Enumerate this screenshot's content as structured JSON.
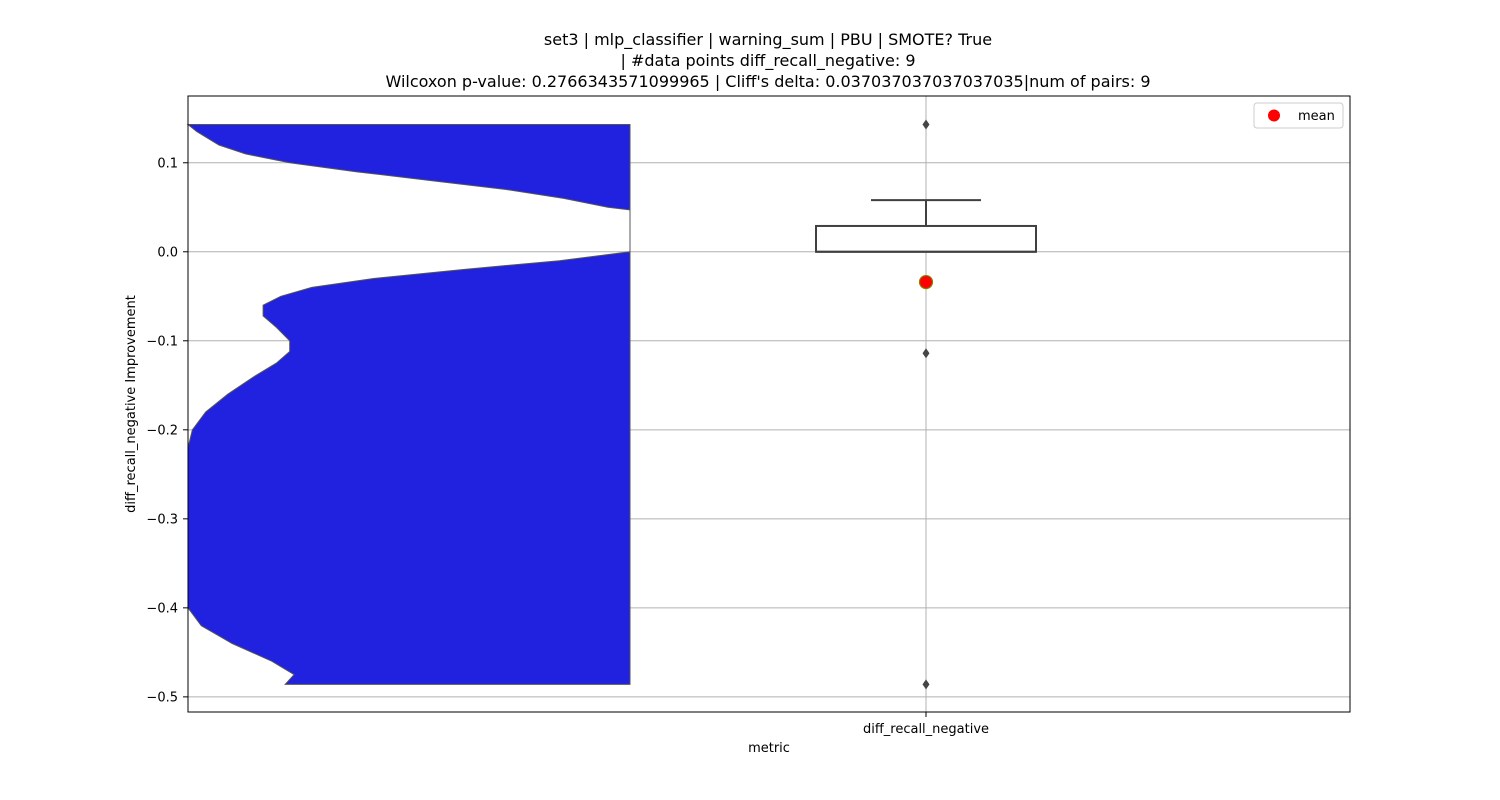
{
  "chart_data": {
    "type": "violin",
    "title_lines": [
      "set3 | mlp_classifier | warning_sum | PBU | SMOTE? True",
      "| #data points diff_recall_negative: 9",
      "Wilcoxon p-value: 0.2766343571099965 | Cliff's delta: 0.037037037037037035|num of pairs: 9"
    ],
    "xlabel": "metric",
    "ylabel": "diff_recall_negative Improvement",
    "categories": [
      "diff_recall_negative"
    ],
    "ylim": [
      -0.517,
      0.175
    ],
    "yticks": [
      0.1,
      0.0,
      -0.1,
      -0.2,
      -0.3,
      -0.4,
      -0.5
    ],
    "ytick_labels": [
      "0.1",
      "0.0",
      "−0.1",
      "−0.2",
      "−0.3",
      "−0.4",
      "−0.5"
    ],
    "grid": true,
    "legend": {
      "position": "top-right",
      "entries": [
        {
          "label": "mean",
          "color": "#ff0000"
        }
      ]
    },
    "violin": {
      "color": "#2121e0",
      "min": -0.486,
      "max": 0.143,
      "density_profile": [
        {
          "y": 0.143,
          "w": 1.0
        },
        {
          "y": 0.135,
          "w": 0.98
        },
        {
          "y": 0.12,
          "w": 0.93
        },
        {
          "y": 0.11,
          "w": 0.87
        },
        {
          "y": 0.1,
          "w": 0.77
        },
        {
          "y": 0.09,
          "w": 0.62
        },
        {
          "y": 0.08,
          "w": 0.45
        },
        {
          "y": 0.07,
          "w": 0.28
        },
        {
          "y": 0.06,
          "w": 0.15
        },
        {
          "y": 0.05,
          "w": 0.05
        },
        {
          "y": 0.047,
          "w": 0.0
        },
        {
          "y": 0.0,
          "w": 0.0
        },
        {
          "y": -0.01,
          "w": 0.16
        },
        {
          "y": -0.02,
          "w": 0.38
        },
        {
          "y": -0.03,
          "w": 0.58
        },
        {
          "y": -0.04,
          "w": 0.72
        },
        {
          "y": -0.05,
          "w": 0.79
        },
        {
          "y": -0.06,
          "w": 0.83
        },
        {
          "y": -0.072,
          "w": 0.83
        },
        {
          "y": -0.085,
          "w": 0.8
        },
        {
          "y": -0.1,
          "w": 0.77
        },
        {
          "y": -0.112,
          "w": 0.77
        },
        {
          "y": -0.125,
          "w": 0.8
        },
        {
          "y": -0.14,
          "w": 0.85
        },
        {
          "y": -0.16,
          "w": 0.91
        },
        {
          "y": -0.18,
          "w": 0.96
        },
        {
          "y": -0.2,
          "w": 0.99
        },
        {
          "y": -0.22,
          "w": 1.0
        },
        {
          "y": -0.4,
          "w": 1.0
        },
        {
          "y": -0.42,
          "w": 0.97
        },
        {
          "y": -0.44,
          "w": 0.9
        },
        {
          "y": -0.46,
          "w": 0.81
        },
        {
          "y": -0.475,
          "w": 0.76
        },
        {
          "y": -0.486,
          "w": 0.78
        }
      ]
    },
    "box": {
      "median": 0.0,
      "q1": 0.0,
      "q3": 0.029,
      "whisker_low": 0.0,
      "whisker_high": 0.058,
      "outliers": [
        0.143,
        -0.114,
        -0.486
      ],
      "mean": -0.034
    },
    "colors": {
      "violin": "#2121e0",
      "box_line": "#404040",
      "mean_fill": "#ff0000",
      "mean_edge": "#808000",
      "grid": "#b0b0b0"
    }
  }
}
